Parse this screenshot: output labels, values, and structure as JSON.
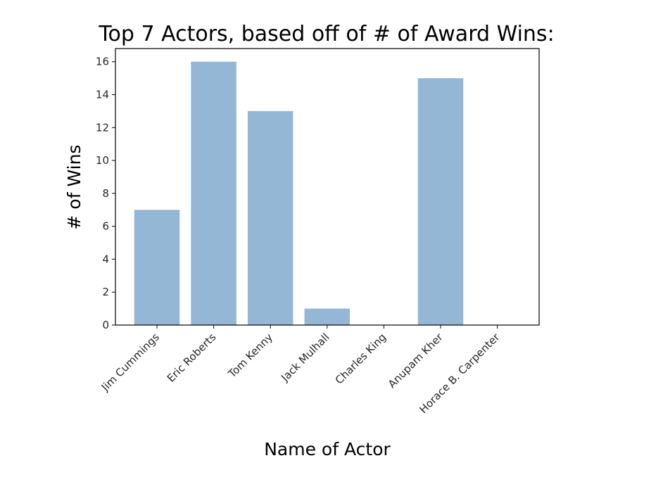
{
  "chart_data": {
    "type": "bar",
    "title": "Top 7 Actors, based off of # of Award Wins:",
    "xlabel": "Name of Actor",
    "ylabel": "# of Wins",
    "categories": [
      "Jim Cummings",
      "Eric Roberts",
      "Tom Kenny",
      "Jack Mulhall",
      "Charles King",
      "Anupam Kher",
      "Horace B. Carpenter"
    ],
    "values": [
      7,
      16,
      13,
      1,
      0,
      15,
      0
    ],
    "ylim": [
      0,
      16.8
    ],
    "yticks": [
      "0",
      "2",
      "4",
      "6",
      "8",
      "10",
      "12",
      "14",
      "16"
    ],
    "bar_color": "#94b7d6",
    "grid": false,
    "legend": "none"
  }
}
